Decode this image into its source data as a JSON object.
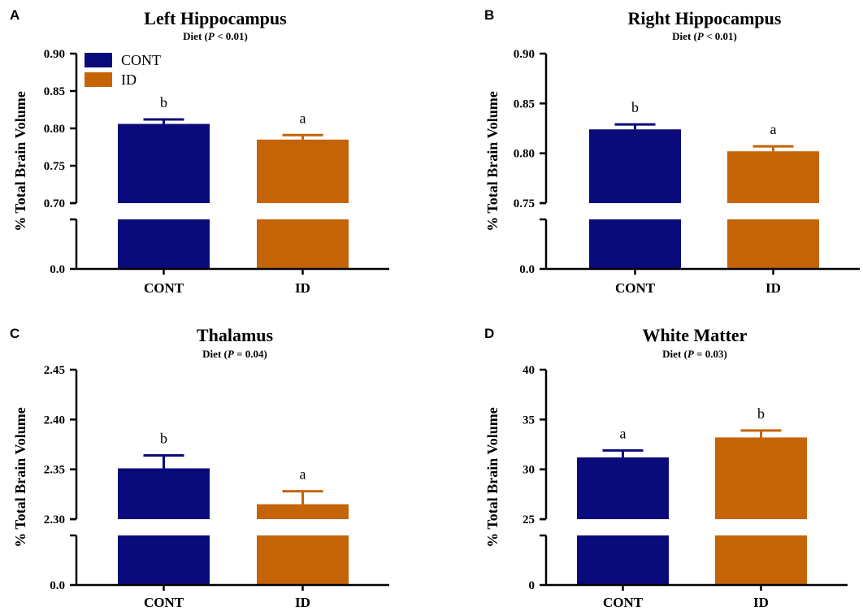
{
  "colors": {
    "CONT": "#0a0a7a",
    "ID": "#c46406",
    "axis": "#000000"
  },
  "legend": {
    "entries": [
      "CONT",
      "ID"
    ]
  },
  "chart_data": [
    {
      "panel": "A",
      "type": "bar",
      "title": "Left Hippocampus",
      "subtitle_prefix": "Diet (",
      "subtitle_p": "P",
      "subtitle_suffix": " < 0.01)",
      "ylabel": "% Total Brain Volume",
      "categories": [
        "CONT",
        "ID"
      ],
      "values": [
        0.806,
        0.785
      ],
      "errors": [
        0.006,
        0.006
      ],
      "letters": [
        "b",
        "a"
      ],
      "ylim_upper": [
        0.7,
        0.9
      ],
      "yticks_upper": [
        "0.70",
        "0.75",
        "0.80",
        "0.85",
        "0.90"
      ],
      "ytick_zero": "0.0",
      "broken_axis": true,
      "legend": "top-left"
    },
    {
      "panel": "B",
      "type": "bar",
      "title": "Right Hippocampus",
      "subtitle_prefix": "Diet (",
      "subtitle_p": "P",
      "subtitle_suffix": " < 0.01)",
      "ylabel": "% Total Brain Volume",
      "categories": [
        "CONT",
        "ID"
      ],
      "values": [
        0.824,
        0.802
      ],
      "errors": [
        0.005,
        0.005
      ],
      "letters": [
        "b",
        "a"
      ],
      "ylim_upper": [
        0.75,
        0.9
      ],
      "yticks_upper": [
        "0.75",
        "0.80",
        "0.85",
        "0.90"
      ],
      "ytick_zero": "0.0",
      "broken_axis": true
    },
    {
      "panel": "C",
      "type": "bar",
      "title": "Thalamus",
      "subtitle_prefix": "Diet (",
      "subtitle_p": "P",
      "subtitle_suffix": " = 0.04)",
      "ylabel": "% Total Brain Volume",
      "categories": [
        "CONT",
        "ID"
      ],
      "values": [
        2.351,
        2.315
      ],
      "errors": [
        0.013,
        0.013
      ],
      "letters": [
        "b",
        "a"
      ],
      "ylim_upper": [
        2.3,
        2.45
      ],
      "yticks_upper": [
        "2.30",
        "2.35",
        "2.40",
        "2.45"
      ],
      "ytick_zero": "0.0",
      "broken_axis": true
    },
    {
      "panel": "D",
      "type": "bar",
      "title": "White Matter",
      "subtitle_prefix": "Diet (",
      "subtitle_p": "P",
      "subtitle_suffix": " = 0.03)",
      "ylabel": "% Total Brain Volume",
      "categories": [
        "CONT",
        "ID"
      ],
      "values": [
        31.2,
        33.2
      ],
      "errors": [
        0.7,
        0.7
      ],
      "letters": [
        "a",
        "b"
      ],
      "ylim_upper": [
        25,
        40
      ],
      "yticks_upper": [
        "25",
        "30",
        "35",
        "40"
      ],
      "ytick_zero": "0",
      "broken_axis": true
    }
  ]
}
